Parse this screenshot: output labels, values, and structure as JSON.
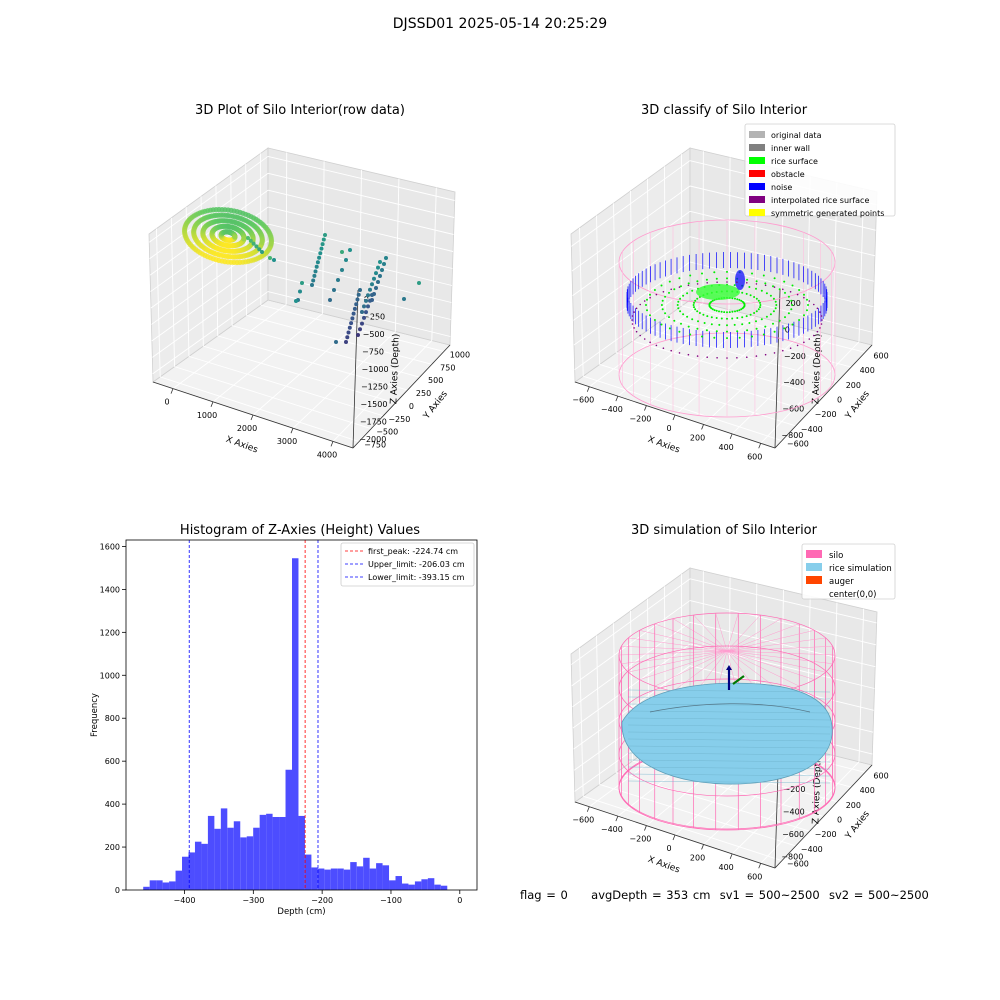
{
  "figure": {
    "title": "DJSSD01 2025-05-14 20:25:29",
    "status": {
      "flag": "flag = 0",
      "avg_depth": "avgDepth = 353 cm",
      "sv1": "sv1 = 500~2500",
      "sv2": "sv2 = 500~2500"
    }
  },
  "chart_data": [
    {
      "type": "scatter",
      "projection": "3d",
      "title": "3D Plot of Silo Interior(row data)",
      "xlabel": "X Axies",
      "ylabel": "Y Axies",
      "zlabel": "Z Axies (Depth)",
      "x_ticks": [
        "0",
        "1000",
        "2000",
        "3000",
        "4000"
      ],
      "y_ticks": [
        "−750",
        "−500",
        "−250",
        "0",
        "250",
        "500",
        "750",
        "1000"
      ],
      "z_ticks": [
        "0",
        "−250",
        "−500",
        "−750",
        "−1000",
        "−1250",
        "−1500",
        "−1750",
        "−2000"
      ],
      "xlim": [
        -500,
        4600
      ],
      "ylim": [
        -800,
        1100
      ],
      "zlim": [
        -2050,
        80
      ],
      "colormap": "viridis (by depth)",
      "series": [
        {
          "group": "surface-cluster",
          "x": [
            0,
            50,
            120,
            200,
            260,
            320,
            380,
            420
          ],
          "y": [
            -200,
            -100,
            0,
            100,
            200,
            300,
            400,
            500
          ],
          "z": [
            -150,
            -250,
            -300,
            -350,
            -400,
            -450,
            -480,
            -500
          ]
        },
        {
          "group": "wall-streak-1",
          "x": [
            1900,
            1950,
            2000,
            2050,
            2100
          ],
          "y": [
            300,
            200,
            100,
            0,
            -100
          ],
          "z": [
            -600,
            -750,
            -900,
            -1000,
            -1100
          ]
        },
        {
          "group": "wall-streak-2",
          "x": [
            2950,
            3000,
            3050,
            3100,
            3200
          ],
          "y": [
            -100,
            -200,
            -300,
            -400,
            -500
          ],
          "z": [
            -800,
            -1000,
            -1200,
            -1400,
            -1600
          ]
        }
      ]
    },
    {
      "type": "scatter",
      "projection": "3d",
      "title": "3D classify of Silo Interior",
      "xlabel": "X Axies",
      "ylabel": "Y Axies",
      "zlabel": "Z Axies (Depth)",
      "x_ticks": [
        "−600",
        "−400",
        "−200",
        "0",
        "200",
        "400",
        "600"
      ],
      "y_ticks": [
        "−600",
        "−400",
        "−200",
        "0",
        "200",
        "400",
        "600"
      ],
      "z_ticks": [
        "200",
        "0",
        "−200",
        "−400",
        "−600",
        "−800"
      ],
      "xlim": [
        -650,
        650
      ],
      "ylim": [
        -650,
        650
      ],
      "zlim": [
        -900,
        250
      ],
      "legend": {
        "position": "upper-right",
        "entries": [
          {
            "label": "original data",
            "color": "#b3b3b3"
          },
          {
            "label": "inner wall",
            "color": "#808080"
          },
          {
            "label": "rice surface",
            "color": "#00ff00"
          },
          {
            "label": "obstacle",
            "color": "#ff0000"
          },
          {
            "label": "noise",
            "color": "#0000ff"
          },
          {
            "label": "interpolated rice surface",
            "color": "#800080"
          },
          {
            "label": "symmetric generated points",
            "color": "#ffff00"
          }
        ]
      }
    },
    {
      "type": "histogram",
      "title": "Histogram of Z-Axies (Height) Values",
      "xlabel": "Depth (cm)",
      "ylabel": "Frequency",
      "xlim": [
        -485,
        25
      ],
      "ylim": [
        0,
        1630
      ],
      "x_ticks": [
        -400,
        -300,
        -200,
        -100,
        0
      ],
      "y_ticks": [
        0,
        200,
        400,
        600,
        800,
        1000,
        1200,
        1400,
        1600
      ],
      "bar_color": "#4d4dff",
      "bin_start": -460,
      "bin_width": 9.4,
      "counts": [
        15,
        45,
        45,
        35,
        40,
        90,
        155,
        175,
        225,
        215,
        345,
        285,
        380,
        290,
        320,
        245,
        250,
        290,
        350,
        355,
        340,
        340,
        560,
        1545,
        345,
        165,
        105,
        100,
        95,
        100,
        100,
        95,
        130,
        110,
        150,
        100,
        125,
        115,
        45,
        65,
        30,
        25,
        40,
        50,
        55,
        25,
        20
      ],
      "lines": [
        {
          "label": "first_peak: -224.74 cm",
          "value": -224.74,
          "color": "#ff0000"
        },
        {
          "label": "Upper_limit: -206.03 cm",
          "value": -206.03,
          "color": "#0000ff"
        },
        {
          "label": "Lower_limit: -393.15 cm",
          "value": -393.15,
          "color": "#0000ff"
        }
      ],
      "legend": {
        "position": "upper-right"
      }
    },
    {
      "type": "surface",
      "projection": "3d",
      "title": "3D simulation of Silo Interior",
      "xlabel": "X Axies",
      "ylabel": "Y Axies",
      "zlabel": "Z Axies (Depth)",
      "x_ticks": [
        "−600",
        "−400",
        "−200",
        "0",
        "200",
        "400",
        "600"
      ],
      "y_ticks": [
        "−600",
        "−400",
        "−200",
        "0",
        "200",
        "400",
        "600"
      ],
      "z_ticks": [
        "400",
        "200",
        "0",
        "−200",
        "−400",
        "−600",
        "−800"
      ],
      "xlim": [
        -650,
        650
      ],
      "ylim": [
        -650,
        650
      ],
      "zlim": [
        -900,
        450
      ],
      "legend": {
        "position": "upper-right",
        "entries": [
          {
            "label": "silo",
            "color": "#ff69b4"
          },
          {
            "label": "rice simulation",
            "color": "#87ceeb"
          },
          {
            "label": "auger",
            "color": "#ff4500"
          },
          {
            "label": "center(0,0)",
            "color": ""
          }
        ]
      }
    }
  ]
}
